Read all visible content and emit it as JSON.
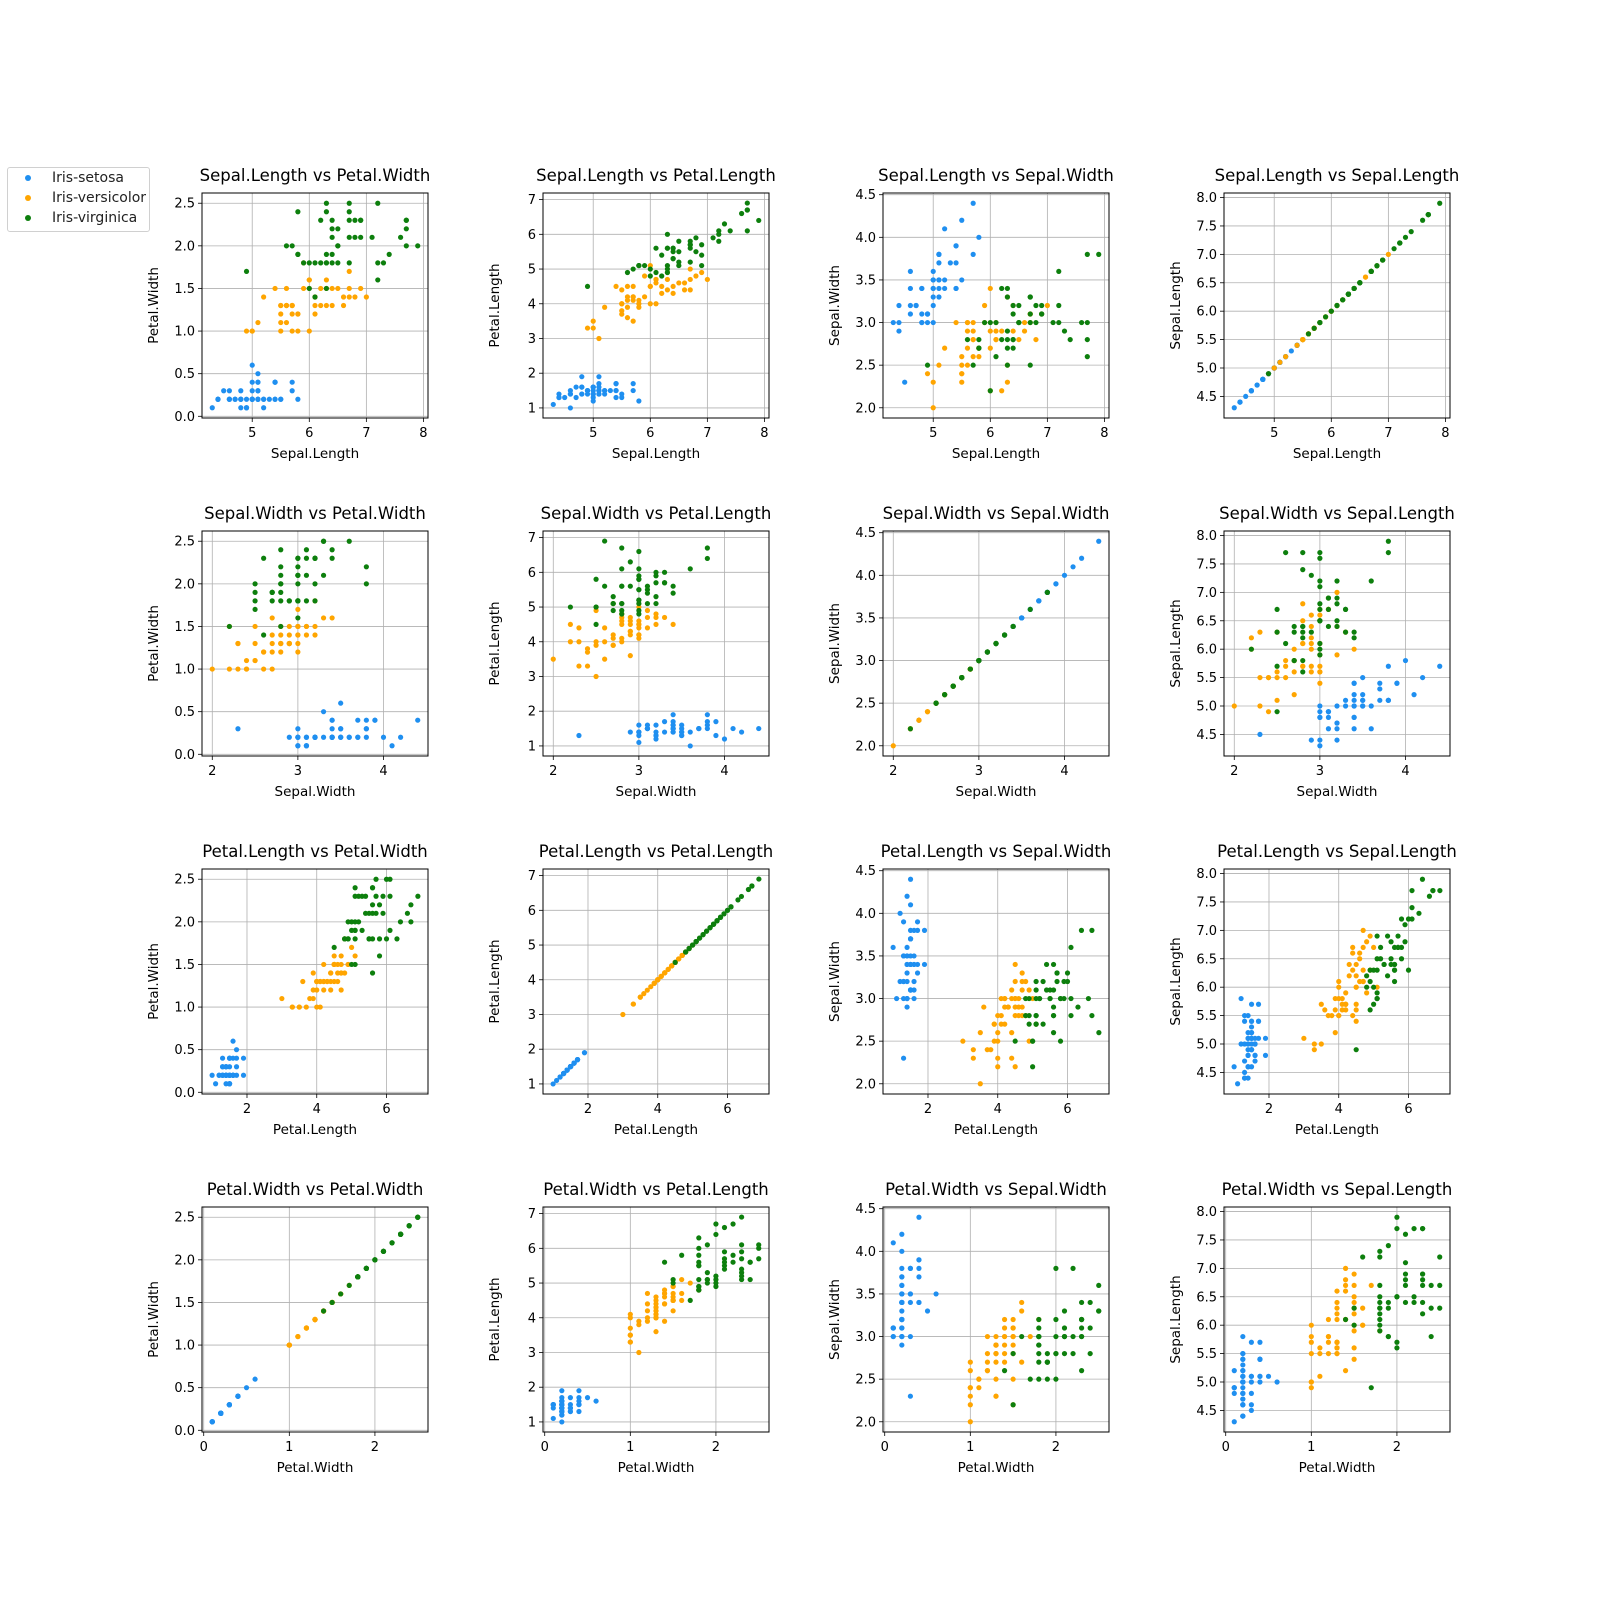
{
  "colors": {
    "Iris-setosa": "#1f8ff0",
    "Iris-versicolor": "#ffa500",
    "Iris-virginica": "#0d7f0d",
    "grid": "#b0b0b0"
  },
  "legend": {
    "placement": "top-left",
    "items": [
      {
        "label": "Iris-setosa",
        "color": "#1f8ff0"
      },
      {
        "label": "Iris-versicolor",
        "color": "#ffa500"
      },
      {
        "label": "Iris-virginica",
        "color": "#0d7f0d"
      }
    ]
  },
  "variables": {
    "Sepal.Length": {
      "ticks": [
        5,
        6,
        7,
        8
      ],
      "tick_labels": [
        "5",
        "6",
        "7",
        "8"
      ],
      "lim": [
        4.12,
        8.08
      ]
    },
    "Sepal.Width": {
      "ticks": [
        2,
        3,
        4
      ],
      "tick_labels": [
        "2",
        "3",
        "4"
      ],
      "lim": [
        1.88,
        4.52
      ]
    },
    "Petal.Length": {
      "ticks": [
        2,
        4,
        6
      ],
      "tick_labels": [
        "2",
        "4",
        "6"
      ],
      "lim": [
        0.71,
        7.19
      ]
    },
    "Petal.Width": {
      "ticks": [
        0,
        1,
        2
      ],
      "tick_labels": [
        "0",
        "1",
        "2"
      ],
      "lim": [
        -0.02,
        2.62
      ]
    }
  },
  "y_ticks": {
    "Sepal.Length": {
      "ticks": [
        4.5,
        5.0,
        5.5,
        6.0,
        6.5,
        7.0,
        7.5,
        8.0
      ],
      "tick_labels": [
        "4.5",
        "5.0",
        "5.5",
        "6.0",
        "6.5",
        "7.0",
        "7.5",
        "8.0"
      ],
      "lim": [
        4.12,
        8.08
      ]
    },
    "Sepal.Width": {
      "ticks": [
        2.0,
        2.5,
        3.0,
        3.5,
        4.0,
        4.5
      ],
      "tick_labels": [
        "2.0",
        "2.5",
        "3.0",
        "3.5",
        "4.0",
        "4.5"
      ],
      "lim": [
        1.88,
        4.52
      ]
    },
    "Petal.Length": {
      "ticks": [
        1,
        2,
        3,
        4,
        5,
        6,
        7
      ],
      "tick_labels": [
        "1",
        "2",
        "3",
        "4",
        "5",
        "6",
        "7"
      ],
      "lim": [
        0.71,
        7.19
      ]
    },
    "Petal.Width": {
      "ticks": [
        0.0,
        0.5,
        1.0,
        1.5,
        2.0,
        2.5
      ],
      "tick_labels": [
        "0.0",
        "0.5",
        "1.0",
        "1.5",
        "2.0",
        "2.5"
      ],
      "lim": [
        -0.02,
        2.62
      ]
    }
  },
  "grid_rows": [
    "Sepal.Length",
    "Sepal.Width",
    "Petal.Length",
    "Petal.Width"
  ],
  "grid_cols": [
    "Petal.Width",
    "Petal.Length",
    "Sepal.Width",
    "Sepal.Length"
  ],
  "chart_data": {
    "type": "scatter",
    "grid": true,
    "columns": [
      "Sepal.Length",
      "Sepal.Width",
      "Petal.Length",
      "Petal.Width"
    ],
    "series": [
      {
        "name": "Iris-setosa",
        "color": "#1f8ff0",
        "points": [
          [
            5.1,
            3.5,
            1.4,
            0.2
          ],
          [
            4.9,
            3.0,
            1.4,
            0.2
          ],
          [
            4.7,
            3.2,
            1.3,
            0.2
          ],
          [
            4.6,
            3.1,
            1.5,
            0.2
          ],
          [
            5.0,
            3.6,
            1.4,
            0.2
          ],
          [
            5.4,
            3.9,
            1.7,
            0.4
          ],
          [
            4.6,
            3.4,
            1.4,
            0.3
          ],
          [
            5.0,
            3.4,
            1.5,
            0.2
          ],
          [
            4.4,
            2.9,
            1.4,
            0.2
          ],
          [
            4.9,
            3.1,
            1.5,
            0.1
          ],
          [
            5.4,
            3.7,
            1.5,
            0.2
          ],
          [
            4.8,
            3.4,
            1.6,
            0.2
          ],
          [
            4.8,
            3.0,
            1.4,
            0.1
          ],
          [
            4.3,
            3.0,
            1.1,
            0.1
          ],
          [
            5.8,
            4.0,
            1.2,
            0.2
          ],
          [
            5.7,
            4.4,
            1.5,
            0.4
          ],
          [
            5.4,
            3.9,
            1.3,
            0.4
          ],
          [
            5.1,
            3.5,
            1.4,
            0.3
          ],
          [
            5.7,
            3.8,
            1.7,
            0.3
          ],
          [
            5.1,
            3.8,
            1.5,
            0.3
          ],
          [
            5.4,
            3.4,
            1.7,
            0.2
          ],
          [
            5.1,
            3.7,
            1.5,
            0.4
          ],
          [
            4.6,
            3.6,
            1.0,
            0.2
          ],
          [
            5.1,
            3.3,
            1.7,
            0.5
          ],
          [
            4.8,
            3.4,
            1.9,
            0.2
          ],
          [
            5.0,
            3.0,
            1.6,
            0.2
          ],
          [
            5.0,
            3.4,
            1.6,
            0.4
          ],
          [
            5.2,
            3.5,
            1.5,
            0.2
          ],
          [
            5.2,
            3.4,
            1.4,
            0.2
          ],
          [
            4.7,
            3.2,
            1.6,
            0.2
          ],
          [
            4.8,
            3.1,
            1.6,
            0.2
          ],
          [
            5.4,
            3.4,
            1.5,
            0.4
          ],
          [
            5.2,
            4.1,
            1.5,
            0.1
          ],
          [
            5.5,
            4.2,
            1.4,
            0.2
          ],
          [
            4.9,
            3.1,
            1.5,
            0.1
          ],
          [
            5.0,
            3.2,
            1.2,
            0.2
          ],
          [
            5.5,
            3.5,
            1.3,
            0.2
          ],
          [
            4.9,
            3.1,
            1.5,
            0.1
          ],
          [
            4.4,
            3.0,
            1.3,
            0.2
          ],
          [
            5.1,
            3.4,
            1.5,
            0.2
          ],
          [
            5.0,
            3.5,
            1.3,
            0.3
          ],
          [
            4.5,
            2.3,
            1.3,
            0.3
          ],
          [
            4.4,
            3.2,
            1.3,
            0.2
          ],
          [
            5.0,
            3.5,
            1.6,
            0.6
          ],
          [
            5.1,
            3.8,
            1.9,
            0.4
          ],
          [
            4.8,
            3.0,
            1.4,
            0.3
          ],
          [
            5.1,
            3.8,
            1.6,
            0.2
          ],
          [
            4.6,
            3.2,
            1.4,
            0.2
          ],
          [
            5.3,
            3.7,
            1.5,
            0.2
          ],
          [
            5.0,
            3.3,
            1.4,
            0.2
          ]
        ]
      },
      {
        "name": "Iris-versicolor",
        "color": "#ffa500",
        "points": [
          [
            7.0,
            3.2,
            4.7,
            1.4
          ],
          [
            6.4,
            3.2,
            4.5,
            1.5
          ],
          [
            6.9,
            3.1,
            4.9,
            1.5
          ],
          [
            5.5,
            2.3,
            4.0,
            1.3
          ],
          [
            6.5,
            2.8,
            4.6,
            1.5
          ],
          [
            5.7,
            2.8,
            4.5,
            1.3
          ],
          [
            6.3,
            3.3,
            4.7,
            1.6
          ],
          [
            4.9,
            2.4,
            3.3,
            1.0
          ],
          [
            6.6,
            2.9,
            4.6,
            1.3
          ],
          [
            5.2,
            2.7,
            3.9,
            1.4
          ],
          [
            5.0,
            2.0,
            3.5,
            1.0
          ],
          [
            5.9,
            3.0,
            4.2,
            1.5
          ],
          [
            6.0,
            2.2,
            4.0,
            1.0
          ],
          [
            6.1,
            2.9,
            4.7,
            1.4
          ],
          [
            5.6,
            2.9,
            3.6,
            1.3
          ],
          [
            6.7,
            3.1,
            4.4,
            1.4
          ],
          [
            5.6,
            3.0,
            4.5,
            1.5
          ],
          [
            5.8,
            2.7,
            4.1,
            1.0
          ],
          [
            6.2,
            2.2,
            4.5,
            1.5
          ],
          [
            5.6,
            2.5,
            3.9,
            1.1
          ],
          [
            5.9,
            3.2,
            4.8,
            1.8
          ],
          [
            6.1,
            2.8,
            4.0,
            1.3
          ],
          [
            6.3,
            2.5,
            4.9,
            1.5
          ],
          [
            6.1,
            2.8,
            4.7,
            1.2
          ],
          [
            6.4,
            2.9,
            4.3,
            1.3
          ],
          [
            6.6,
            3.0,
            4.4,
            1.4
          ],
          [
            6.8,
            2.8,
            4.8,
            1.4
          ],
          [
            6.7,
            3.0,
            5.0,
            1.7
          ],
          [
            6.0,
            2.9,
            4.5,
            1.5
          ],
          [
            5.7,
            2.6,
            3.5,
            1.0
          ],
          [
            5.5,
            2.4,
            3.8,
            1.1
          ],
          [
            5.5,
            2.4,
            3.7,
            1.0
          ],
          [
            5.8,
            2.7,
            3.9,
            1.2
          ],
          [
            6.0,
            2.7,
            5.1,
            1.6
          ],
          [
            5.4,
            3.0,
            4.5,
            1.5
          ],
          [
            6.0,
            3.4,
            4.5,
            1.6
          ],
          [
            6.7,
            3.1,
            4.7,
            1.5
          ],
          [
            6.3,
            2.3,
            4.4,
            1.3
          ],
          [
            5.6,
            3.0,
            4.1,
            1.3
          ],
          [
            5.5,
            2.5,
            4.0,
            1.3
          ],
          [
            5.5,
            2.6,
            4.4,
            1.2
          ],
          [
            6.1,
            3.0,
            4.6,
            1.4
          ],
          [
            5.8,
            2.6,
            4.0,
            1.2
          ],
          [
            5.0,
            2.3,
            3.3,
            1.0
          ],
          [
            5.6,
            2.7,
            4.2,
            1.3
          ],
          [
            5.7,
            3.0,
            4.2,
            1.2
          ],
          [
            5.7,
            2.9,
            4.2,
            1.3
          ],
          [
            6.2,
            2.9,
            4.3,
            1.3
          ],
          [
            5.1,
            2.5,
            3.0,
            1.1
          ],
          [
            5.7,
            2.8,
            4.1,
            1.3
          ]
        ]
      },
      {
        "name": "Iris-virginica",
        "color": "#0d7f0d",
        "points": [
          [
            6.3,
            3.3,
            6.0,
            2.5
          ],
          [
            5.8,
            2.7,
            5.1,
            1.9
          ],
          [
            7.1,
            3.0,
            5.9,
            2.1
          ],
          [
            6.3,
            2.9,
            5.6,
            1.8
          ],
          [
            6.5,
            3.0,
            5.8,
            2.2
          ],
          [
            7.6,
            3.0,
            6.6,
            2.1
          ],
          [
            4.9,
            2.5,
            4.5,
            1.7
          ],
          [
            7.3,
            2.9,
            6.3,
            1.8
          ],
          [
            6.7,
            2.5,
            5.8,
            1.8
          ],
          [
            7.2,
            3.6,
            6.1,
            2.5
          ],
          [
            6.5,
            3.2,
            5.1,
            2.0
          ],
          [
            6.4,
            2.7,
            5.3,
            1.9
          ],
          [
            6.8,
            3.0,
            5.5,
            2.1
          ],
          [
            5.7,
            2.5,
            5.0,
            2.0
          ],
          [
            5.8,
            2.8,
            5.1,
            2.4
          ],
          [
            6.4,
            3.2,
            5.3,
            2.3
          ],
          [
            6.5,
            3.0,
            5.5,
            1.8
          ],
          [
            7.7,
            3.8,
            6.7,
            2.2
          ],
          [
            7.7,
            2.6,
            6.9,
            2.3
          ],
          [
            6.0,
            2.2,
            5.0,
            1.5
          ],
          [
            6.9,
            3.2,
            5.7,
            2.3
          ],
          [
            5.6,
            2.8,
            4.9,
            2.0
          ],
          [
            7.7,
            2.8,
            6.7,
            2.0
          ],
          [
            6.3,
            2.7,
            4.9,
            1.8
          ],
          [
            6.7,
            3.3,
            5.7,
            2.1
          ],
          [
            7.2,
            3.2,
            6.0,
            1.8
          ],
          [
            6.2,
            2.8,
            4.8,
            1.8
          ],
          [
            6.1,
            3.0,
            4.9,
            1.8
          ],
          [
            6.4,
            2.8,
            5.6,
            2.1
          ],
          [
            7.2,
            3.0,
            5.8,
            1.6
          ],
          [
            7.4,
            2.8,
            6.1,
            1.9
          ],
          [
            7.9,
            3.8,
            6.4,
            2.0
          ],
          [
            6.4,
            2.8,
            5.6,
            2.2
          ],
          [
            6.3,
            2.8,
            5.1,
            1.5
          ],
          [
            6.1,
            2.6,
            5.6,
            1.4
          ],
          [
            7.7,
            3.0,
            6.1,
            2.3
          ],
          [
            6.3,
            3.4,
            5.6,
            2.4
          ],
          [
            6.4,
            3.1,
            5.5,
            1.8
          ],
          [
            6.0,
            3.0,
            4.8,
            1.8
          ],
          [
            6.9,
            3.1,
            5.4,
            2.1
          ],
          [
            6.7,
            3.1,
            5.6,
            2.4
          ],
          [
            6.9,
            3.1,
            5.1,
            2.3
          ],
          [
            5.8,
            2.7,
            5.1,
            1.9
          ],
          [
            6.8,
            3.2,
            5.9,
            2.3
          ],
          [
            6.7,
            3.3,
            5.7,
            2.5
          ],
          [
            6.7,
            3.0,
            5.2,
            2.3
          ],
          [
            6.3,
            2.5,
            5.0,
            1.9
          ],
          [
            6.5,
            3.0,
            5.2,
            2.0
          ],
          [
            6.2,
            3.4,
            5.4,
            2.3
          ],
          [
            5.9,
            3.0,
            5.1,
            1.8
          ]
        ]
      }
    ]
  }
}
